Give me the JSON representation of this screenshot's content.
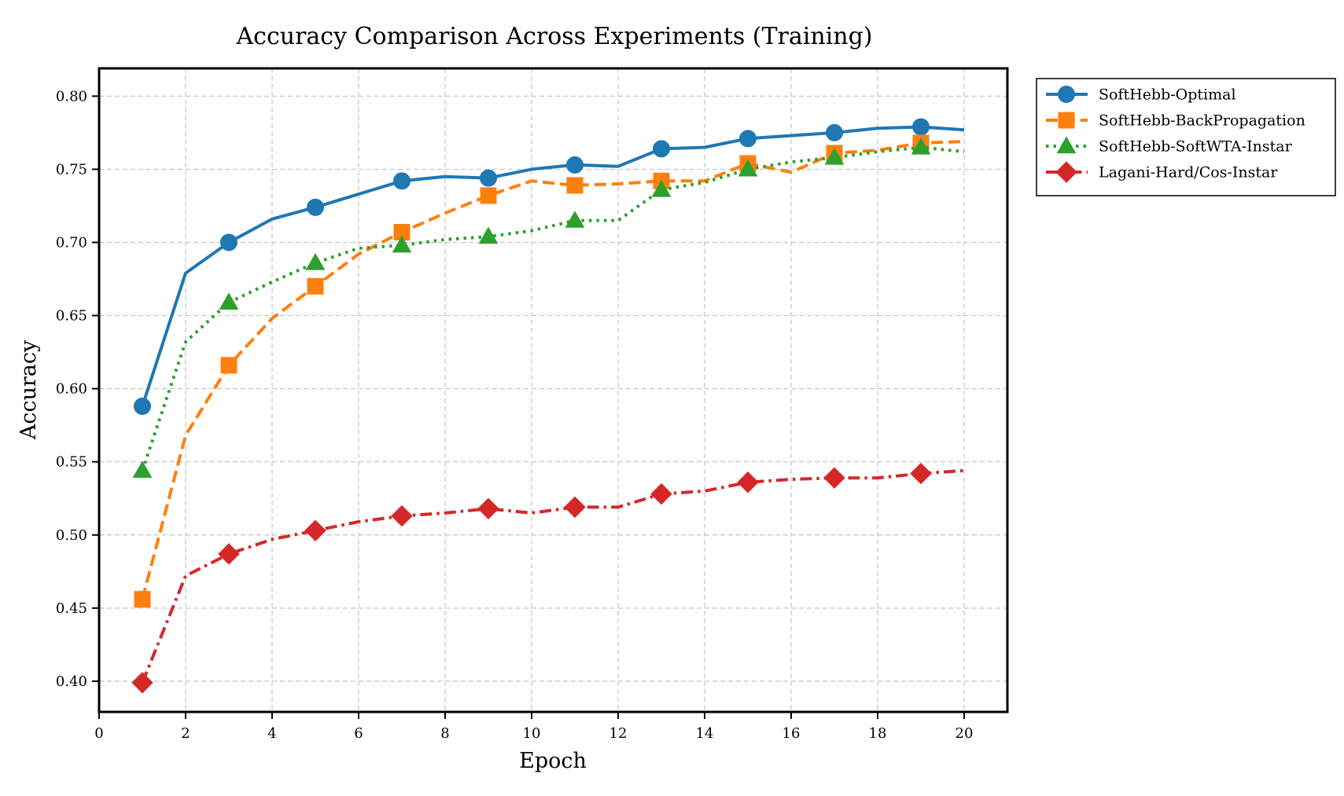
{
  "chart_data": {
    "type": "line",
    "title": "Accuracy Comparison Across Experiments (Training)",
    "xlabel": "Epoch",
    "ylabel": "Accuracy",
    "xlim": [
      0,
      21
    ],
    "ylim": [
      0.379,
      0.819
    ],
    "xticks": [
      0,
      2,
      4,
      6,
      8,
      10,
      12,
      14,
      16,
      18,
      20
    ],
    "xtick_labels": [
      "0",
      "2",
      "4",
      "6",
      "8",
      "10",
      "12",
      "14",
      "16",
      "18",
      "20"
    ],
    "yticks": [
      0.4,
      0.45,
      0.5,
      0.55,
      0.6,
      0.65,
      0.7,
      0.75,
      0.8
    ],
    "ytick_labels": [
      "0.40",
      "0.45",
      "0.50",
      "0.55",
      "0.60",
      "0.65",
      "0.70",
      "0.75",
      "0.80"
    ],
    "grid": true,
    "legend_position": "outside-right-top",
    "x": [
      1,
      2,
      3,
      4,
      5,
      6,
      7,
      8,
      9,
      10,
      11,
      12,
      13,
      14,
      15,
      16,
      17,
      18,
      19,
      20
    ],
    "series": [
      {
        "name": "SoftHebb-Optimal",
        "color": "#1f77b4",
        "linestyle": "solid",
        "marker": "circle",
        "marker_every": 2,
        "values": [
          0.588,
          0.679,
          0.7,
          0.716,
          0.724,
          0.733,
          0.742,
          0.745,
          0.744,
          0.75,
          0.753,
          0.752,
          0.764,
          0.765,
          0.771,
          0.773,
          0.775,
          0.778,
          0.779,
          0.777
        ]
      },
      {
        "name": "SoftHebb-BackPropagation",
        "color": "#ff7f0e",
        "linestyle": "dashed",
        "marker": "square",
        "marker_every": 2,
        "values": [
          0.456,
          0.568,
          0.616,
          0.648,
          0.67,
          0.692,
          0.707,
          0.72,
          0.732,
          0.742,
          0.739,
          0.74,
          0.742,
          0.742,
          0.754,
          0.748,
          0.761,
          0.763,
          0.768,
          0.769
        ]
      },
      {
        "name": "SoftHebb-SoftWTA-Instar",
        "color": "#2ca02c",
        "linestyle": "dotted",
        "marker": "triangle",
        "marker_every": 2,
        "values": [
          0.544,
          0.632,
          0.659,
          0.673,
          0.686,
          0.696,
          0.698,
          0.702,
          0.704,
          0.708,
          0.715,
          0.715,
          0.736,
          0.741,
          0.75,
          0.755,
          0.758,
          0.762,
          0.765,
          0.762
        ]
      },
      {
        "name": "Lagani-Hard/Cos-Instar",
        "color": "#d62728",
        "linestyle": "dashdot",
        "marker": "diamond",
        "marker_every": 2,
        "values": [
          0.399,
          0.472,
          0.487,
          0.497,
          0.503,
          0.509,
          0.513,
          0.515,
          0.518,
          0.515,
          0.519,
          0.519,
          0.528,
          0.53,
          0.536,
          0.538,
          0.539,
          0.539,
          0.542,
          0.544
        ]
      }
    ]
  }
}
